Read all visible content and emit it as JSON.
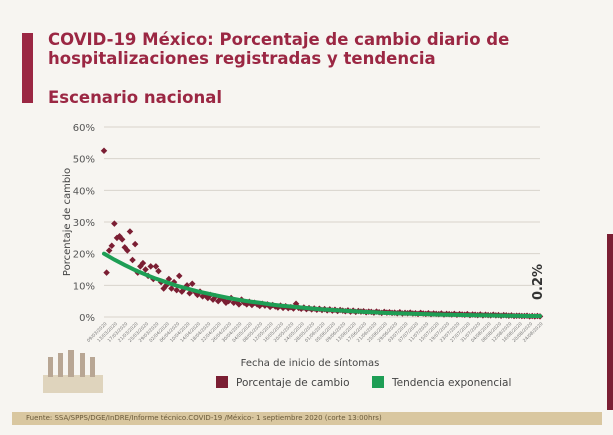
{
  "header": {
    "title": "COVID-19 México: Porcentaje de cambio diario de hospitalizaciones registradas y tendencia",
    "subtitle": "Escenario nacional"
  },
  "footer": {
    "source": "Fuente: SSA/SPPS/DGE/InDRE/Informe técnico.COVID-19 /México- 1 septiembre 2020 (corte 13:00hrs)"
  },
  "colors": {
    "title": "#9b2743",
    "points": "#7b1e33",
    "trend": "#1e9e55",
    "footer": "#d9c7a0"
  },
  "chart_data": {
    "type": "scatter",
    "xlabel": "Fecha de inicio de síntomas",
    "ylabel": "Porcentaje de cambio",
    "ylim": [
      0,
      60
    ],
    "yticks": [
      "0%",
      "10%",
      "20%",
      "30%",
      "40%",
      "50%",
      "60%"
    ],
    "grid": true,
    "legend_placement": "bottom",
    "annotation": "0.2%",
    "x_labels": [
      "09/03/2020",
      "13/03/2020",
      "17/03/2020",
      "21/03/2020",
      "25/03/2020",
      "29/03/2020",
      "02/04/2020",
      "06/04/2020",
      "10/04/2020",
      "14/04/2020",
      "18/04/2020",
      "22/04/2020",
      "26/04/2020",
      "30/04/2020",
      "04/05/2020",
      "08/05/2020",
      "12/05/2020",
      "16/05/2020",
      "20/05/2020",
      "24/05/2020",
      "28/05/2020",
      "01/06/2020",
      "05/06/2020",
      "09/06/2020",
      "13/06/2020",
      "17/06/2020",
      "21/06/2020",
      "25/06/2020",
      "29/06/2020",
      "03/07/2020",
      "07/07/2020",
      "11/07/2020",
      "15/07/2020",
      "19/07/2020",
      "23/07/2020",
      "27/07/2020",
      "31/07/2020",
      "04/08/2020",
      "08/08/2020",
      "12/08/2020",
      "16/08/2020",
      "20/08/2020",
      "24/08/2020"
    ],
    "series": [
      {
        "name": "Porcentaje de cambio",
        "kind": "daily",
        "values": [
          52.5,
          14,
          21,
          22.5,
          29.5,
          25,
          25.5,
          24.5,
          22,
          21,
          27,
          18,
          23,
          14,
          16,
          17,
          15,
          13,
          16,
          12,
          16,
          14.5,
          11,
          9,
          10,
          12,
          9,
          11,
          8.5,
          13,
          8,
          9,
          10,
          7.5,
          10.5,
          8,
          7,
          8,
          6.5,
          7,
          6,
          7,
          5.5,
          6.5,
          5,
          6,
          5.5,
          4.5,
          5,
          6,
          4.5,
          5,
          4,
          5.5,
          4.5,
          4,
          4.8,
          3.8,
          4.5,
          4,
          3.5,
          4.2,
          3.6,
          4,
          3.2,
          3.8,
          3.3,
          3,
          3.6,
          2.9,
          3.4,
          2.8,
          3.1,
          2.7,
          4.2,
          2.9,
          2.6,
          3,
          2.5,
          2.8,
          2.4,
          2.7,
          2.3,
          2.6,
          2.2,
          2.5,
          2.1,
          2.4,
          2,
          2.3,
          1.9,
          2.2,
          2,
          1.8,
          2.1,
          1.7,
          2,
          1.6,
          1.9,
          1.7,
          1.8,
          1.5,
          1.7,
          1.6,
          1.4,
          1.7,
          1.5,
          1.3,
          1.6,
          1.4,
          1.5,
          1.3,
          1.4,
          1.2,
          1.5,
          1.1,
          1.3,
          1.2,
          1.4,
          1.1,
          1.2,
          1,
          1.3,
          1.1,
          1,
          1.2,
          0.9,
          1.1,
          1,
          0.9,
          1.1,
          0.8,
          1,
          0.9,
          0.8,
          1,
          0.7,
          0.9,
          0.8,
          0.7,
          0.9,
          0.6,
          0.8,
          0.7,
          0.6,
          0.8,
          0.5,
          0.7,
          0.6,
          0.5,
          0.7,
          0.5,
          0.6,
          0.4,
          0.6,
          0.5,
          0.4,
          0.5,
          0.3,
          0.4,
          0.4,
          0.3,
          0.3,
          0.4,
          0.2,
          0.3,
          0.2,
          0.3,
          0.2
        ]
      },
      {
        "name": "Tendencia exponencial",
        "kind": "at_x_labels",
        "values": [
          20,
          18.1,
          16.4,
          14.8,
          13.4,
          12.1,
          11,
          9.9,
          9,
          8.1,
          7.4,
          6.7,
          6,
          5.4,
          4.9,
          4.5,
          4,
          3.6,
          3.3,
          3,
          2.7,
          2.4,
          2.2,
          2,
          1.8,
          1.6,
          1.5,
          1.3,
          1.2,
          1.1,
          1,
          0.9,
          0.8,
          0.7,
          0.67,
          0.6,
          0.55,
          0.5,
          0.45,
          0.4,
          0.37,
          0.33,
          0.3
        ]
      }
    ]
  }
}
